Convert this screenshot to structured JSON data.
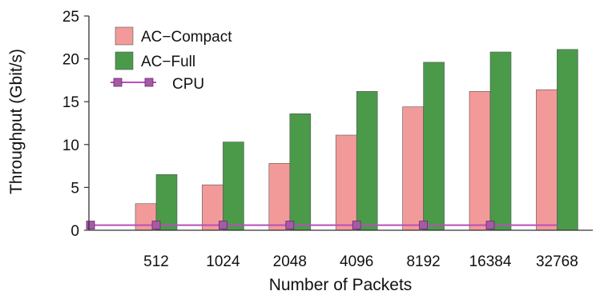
{
  "chart_data": {
    "type": "bar",
    "title": "",
    "xlabel": "Number of Packets",
    "ylabel": "Throughput (Gbit/s)",
    "ylim": [
      0,
      25
    ],
    "yticks": [
      0,
      5,
      10,
      15,
      20,
      25
    ],
    "grid": false,
    "legend_position": "top-left",
    "categories": [
      "512",
      "1024",
      "2048",
      "4096",
      "8192",
      "16384",
      "32768"
    ],
    "series": [
      {
        "name": "AC−Compact",
        "kind": "bar",
        "color": "#f29a9a",
        "values": [
          3.1,
          5.3,
          7.8,
          11.1,
          14.4,
          16.2,
          16.4
        ]
      },
      {
        "name": "AC−Full",
        "kind": "bar",
        "color": "#4a9a4a",
        "values": [
          6.5,
          10.3,
          13.6,
          16.2,
          19.6,
          20.8,
          21.1
        ]
      },
      {
        "name": "CPU",
        "kind": "line",
        "color": "#b84fb8",
        "marker_color": "#a55aa8",
        "values": [
          0.6,
          0.6,
          0.6,
          0.6,
          0.6,
          0.6,
          0.6
        ]
      }
    ]
  }
}
